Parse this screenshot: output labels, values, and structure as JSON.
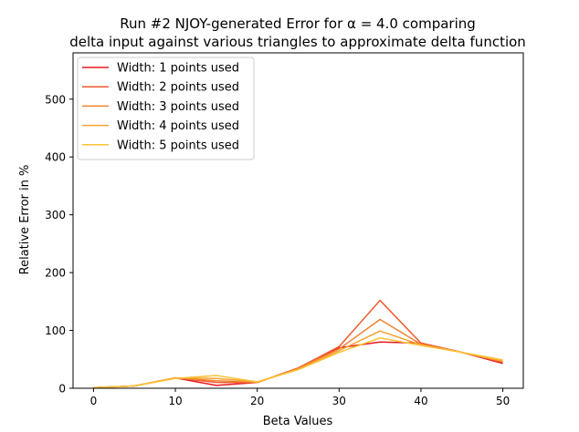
{
  "chart_data": {
    "type": "line",
    "title_line1": "Run #2 NJOY-generated Error for α = 4.0 comparing",
    "title_line2": "delta input against various triangles to approximate delta function",
    "xlabel": "Beta Values",
    "ylabel": "Relative Error in %",
    "xlim": [
      -2.5,
      52.5
    ],
    "ylim": [
      0,
      580
    ],
    "xticks": [
      0,
      10,
      20,
      30,
      40,
      50
    ],
    "yticks": [
      0,
      100,
      200,
      300,
      400,
      500
    ],
    "legend_position": "top-left",
    "x": [
      0,
      5,
      10,
      15,
      20,
      25,
      30,
      35,
      40,
      45,
      50
    ],
    "series": [
      {
        "name": "Width: 1 points used",
        "color": "#e8191c",
        "values": [
          1,
          4,
          18,
          5,
          10,
          35,
          70,
          80,
          78,
          62,
          43
        ]
      },
      {
        "name": "Width: 2 points used",
        "color": "#ee5a2c",
        "values": [
          1,
          4,
          18,
          10,
          10,
          35,
          72,
          152,
          78,
          62,
          45
        ]
      },
      {
        "name": "Width: 3 points used",
        "color": "#f3812f",
        "values": [
          1,
          4,
          18,
          13,
          10,
          34,
          68,
          119,
          76,
          62,
          46
        ]
      },
      {
        "name": "Width: 4 points used",
        "color": "#f7a231",
        "values": [
          1,
          4,
          18,
          17,
          11,
          33,
          65,
          99,
          75,
          62,
          47
        ]
      },
      {
        "name": "Width: 5 points used",
        "color": "#fbc235",
        "values": [
          1,
          4,
          17,
          22,
          11,
          32,
          62,
          87,
          74,
          62,
          49
        ]
      }
    ]
  }
}
